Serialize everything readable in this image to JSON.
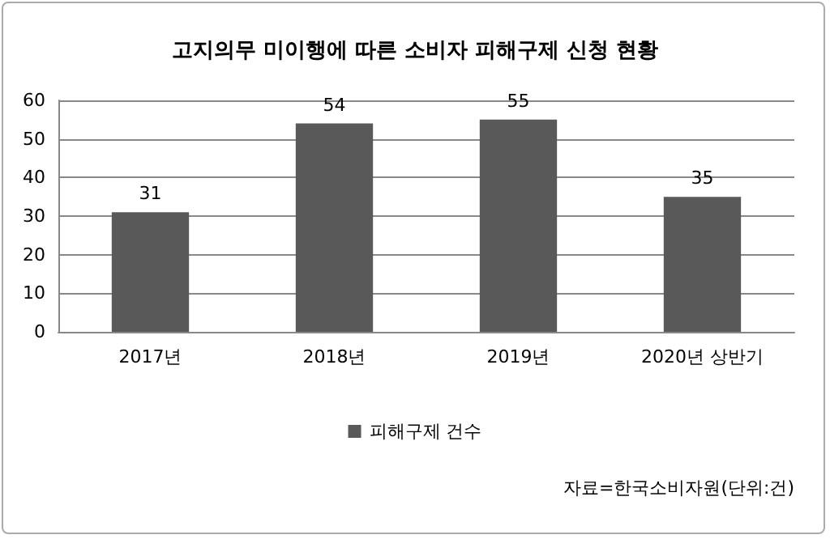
{
  "chart_data": {
    "type": "bar",
    "title": "고지의무 미이행에 따른 소비자 피해구제 신청 현황",
    "categories": [
      "2017년",
      "2018년",
      "2019년",
      "2020년 상반기"
    ],
    "series": [
      {
        "name": "피해구제 건수",
        "color": "#595959",
        "values": [
          31,
          54,
          55,
          35
        ]
      }
    ],
    "ylim": [
      0,
      60
    ],
    "yticks": [
      0,
      10,
      20,
      30,
      40,
      50,
      60
    ],
    "grid": "y",
    "legend": "bottom",
    "data_labels": true,
    "annotations": [
      "자료=한국소비자원(단위:건)"
    ]
  }
}
